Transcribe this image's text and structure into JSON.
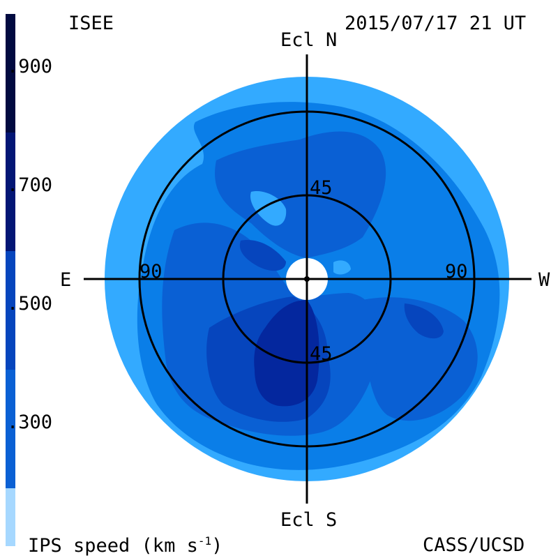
{
  "header": {
    "left_label": "ISEE",
    "timestamp": "2015/07/17 21 UT"
  },
  "footer": {
    "colorbar_title": "IPS speed (km s",
    "colorbar_title_exp": "-1",
    "colorbar_title_end": ")",
    "credit": "CASS/UCSD"
  },
  "colorbar": {
    "tick_labels": [
      "900",
      "700",
      "500",
      "300"
    ],
    "colors": [
      "#a6d8ff",
      "#33aaff",
      "#0a7ee8",
      "#0a60d4",
      "#0645bd",
      "#04279e",
      "#021675",
      "#010a40"
    ]
  },
  "map": {
    "direction_labels": {
      "north": "Ecl N",
      "south": "Ecl S",
      "east": "E",
      "west": "W"
    },
    "ring_labels": {
      "inner_top": "45",
      "inner_bottom": "45",
      "outer_left": "90",
      "outer_right": "90"
    }
  }
}
